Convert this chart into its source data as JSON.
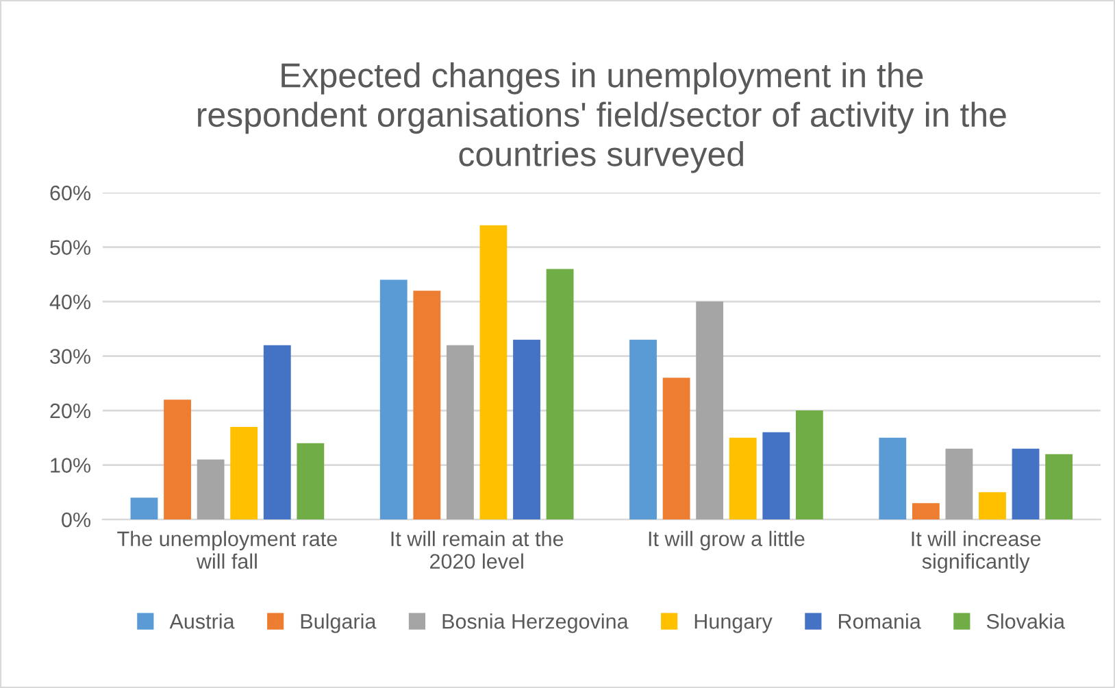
{
  "chart_data": {
    "type": "bar",
    "title": "Expected changes in unemployment in the respondent organisations' field/sector of activity in the countries surveyed",
    "categories": [
      "The unemployment rate will fall",
      "It will remain at the 2020 level",
      "It will grow a little",
      "It will increase significantly"
    ],
    "series": [
      {
        "name": "Austria",
        "color": "#5b9bd5",
        "values": [
          4,
          44,
          33,
          15
        ]
      },
      {
        "name": "Bulgaria",
        "color": "#ed7d31",
        "values": [
          22,
          42,
          26,
          3
        ]
      },
      {
        "name": "Bosnia Herzegovina",
        "color": "#a5a5a5",
        "values": [
          11,
          32,
          40,
          13
        ]
      },
      {
        "name": "Hungary",
        "color": "#ffc000",
        "values": [
          17,
          54,
          15,
          5
        ]
      },
      {
        "name": "Romania",
        "color": "#4472c4",
        "values": [
          32,
          33,
          16,
          13
        ]
      },
      {
        "name": "Slovakia",
        "color": "#70ad47",
        "values": [
          14,
          46,
          20,
          12
        ]
      }
    ],
    "ylim": [
      0,
      60
    ],
    "yticks": [
      {
        "value": 0,
        "label": "0%"
      },
      {
        "value": 10,
        "label": "10%"
      },
      {
        "value": 20,
        "label": "20%"
      },
      {
        "value": 30,
        "label": "30%"
      },
      {
        "value": 40,
        "label": "40%"
      },
      {
        "value": 50,
        "label": "50%"
      },
      {
        "value": 60,
        "label": "60%"
      }
    ],
    "grid": "y",
    "legend": "bottom"
  }
}
